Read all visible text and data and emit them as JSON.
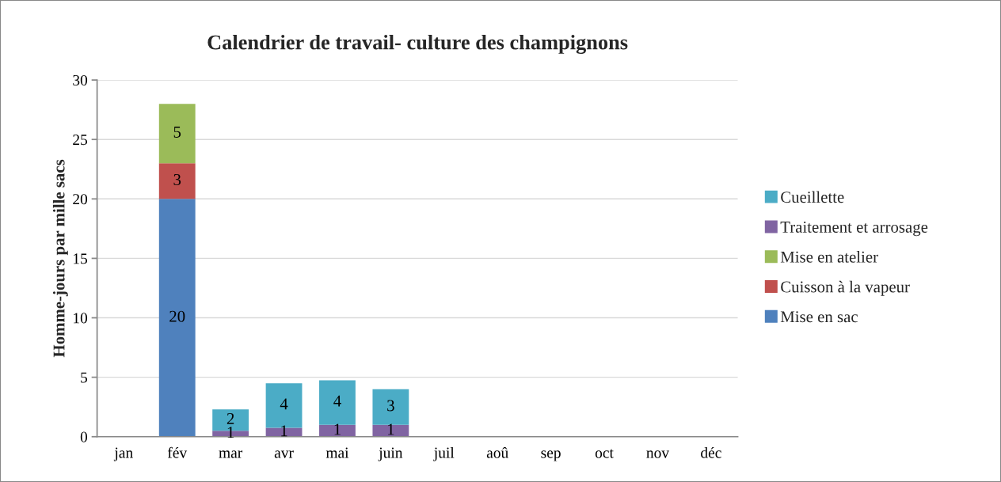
{
  "chart_data": {
    "type": "bar",
    "title": "Calendrier de travail- culture des champignons",
    "ylabel": "Homme-jours par mille sacs",
    "categories": [
      "jan",
      "fév",
      "mar",
      "avr",
      "mai",
      "juin",
      "juil",
      "aoû",
      "sep",
      "oct",
      "nov",
      "déc"
    ],
    "stacked": true,
    "ylim": [
      0,
      30
    ],
    "yticks": [
      0,
      5,
      10,
      15,
      20,
      25,
      30
    ],
    "grid": "y",
    "legend": "right",
    "series": [
      {
        "name": "Mise en sac",
        "color": "#4f81bd",
        "values": [
          null,
          20,
          null,
          null,
          null,
          null,
          null,
          null,
          null,
          null,
          null,
          null
        ],
        "value_labels": [
          null,
          "20",
          null,
          null,
          null,
          null,
          null,
          null,
          null,
          null,
          null,
          null
        ]
      },
      {
        "name": "Cuisson à la vapeur",
        "color": "#c0504d",
        "values": [
          null,
          3,
          null,
          null,
          null,
          null,
          null,
          null,
          null,
          null,
          null,
          null
        ],
        "value_labels": [
          null,
          "3",
          null,
          null,
          null,
          null,
          null,
          null,
          null,
          null,
          null,
          null
        ]
      },
      {
        "name": "Mise en atelier",
        "color": "#9bbb59",
        "values": [
          null,
          5,
          null,
          null,
          null,
          null,
          null,
          null,
          null,
          null,
          null,
          null
        ],
        "value_labels": [
          null,
          "5",
          null,
          null,
          null,
          null,
          null,
          null,
          null,
          null,
          null,
          null
        ]
      },
      {
        "name": "Traitement et arrosage",
        "color": "#8064a2",
        "values": [
          null,
          null,
          0.5,
          0.75,
          1,
          1,
          null,
          null,
          null,
          null,
          null,
          null
        ],
        "value_labels": [
          null,
          null,
          "1",
          "1",
          "1",
          "1",
          null,
          null,
          null,
          null,
          null,
          null
        ]
      },
      {
        "name": "Cueillette",
        "color": "#4bacc6",
        "values": [
          null,
          null,
          1.8,
          3.75,
          3.75,
          3,
          null,
          null,
          null,
          null,
          null,
          null
        ],
        "value_labels": [
          null,
          null,
          "2",
          "4",
          "4",
          "3",
          null,
          null,
          null,
          null,
          null,
          null
        ]
      }
    ]
  }
}
